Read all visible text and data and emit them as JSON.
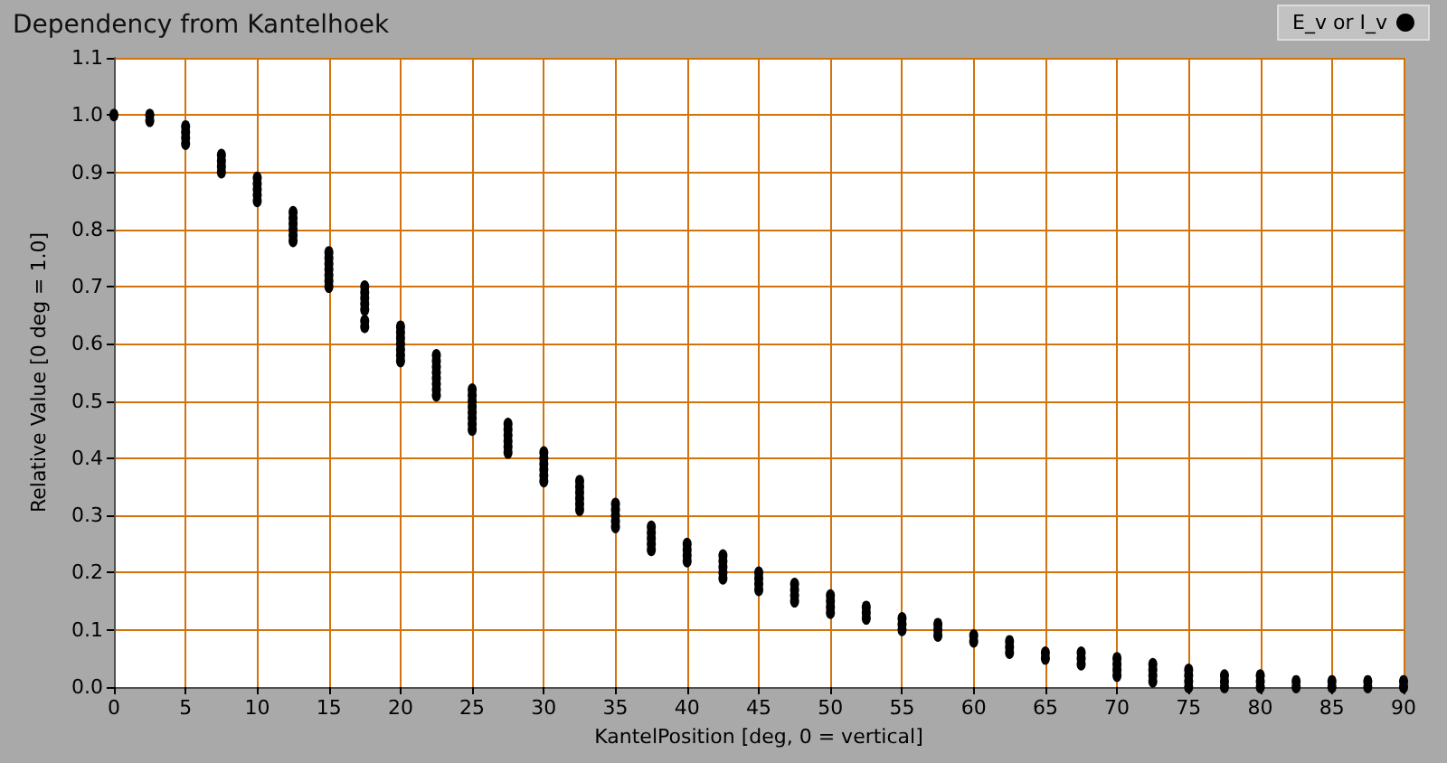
{
  "chart_data": {
    "type": "scatter",
    "title": "Dependency from Kantelhoek",
    "xlabel": "KantelPosition [deg, 0 = vertical]",
    "ylabel": "Relative Value [0 deg = 1.0]",
    "series": [
      {
        "name": "E_v or I_v",
        "color": "#000000",
        "x": [
          0,
          2.5,
          2.5,
          5,
          5,
          5,
          5,
          7.5,
          7.5,
          7.5,
          7.5,
          10,
          10,
          10,
          10,
          10,
          12.5,
          12.5,
          12.5,
          12.5,
          12.5,
          12.5,
          15,
          15,
          15,
          15,
          15,
          15,
          15,
          17.5,
          17.5,
          17.5,
          17.5,
          17.5,
          17.5,
          17.5,
          20,
          20,
          20,
          20,
          20,
          20,
          20,
          22.5,
          22.5,
          22.5,
          22.5,
          22.5,
          22.5,
          22.5,
          22.5,
          25,
          25,
          25,
          25,
          25,
          25,
          25,
          25,
          27.5,
          27.5,
          27.5,
          27.5,
          27.5,
          27.5,
          30,
          30,
          30,
          30,
          30,
          30,
          32.5,
          32.5,
          32.5,
          32.5,
          32.5,
          32.5,
          35,
          35,
          35,
          35,
          35,
          37.5,
          37.5,
          37.5,
          37.5,
          37.5,
          40,
          40,
          40,
          40,
          42.5,
          42.5,
          42.5,
          42.5,
          42.5,
          45,
          45,
          45,
          45,
          47.5,
          47.5,
          47.5,
          47.5,
          50,
          50,
          50,
          50,
          52.5,
          52.5,
          52.5,
          55,
          55,
          55,
          57.5,
          57.5,
          57.5,
          60,
          60,
          62.5,
          62.5,
          62.5,
          65,
          65,
          67.5,
          67.5,
          67.5,
          70,
          70,
          70,
          70,
          72.5,
          72.5,
          72.5,
          72.5,
          75,
          75,
          75,
          75,
          77.5,
          77.5,
          77.5,
          80,
          80,
          80,
          82.5,
          82.5,
          85,
          85,
          87.5,
          87.5,
          90,
          90
        ],
        "values": [
          1.0,
          1.0,
          0.99,
          0.98,
          0.97,
          0.96,
          0.95,
          0.93,
          0.92,
          0.91,
          0.9,
          0.89,
          0.88,
          0.87,
          0.86,
          0.85,
          0.83,
          0.82,
          0.81,
          0.8,
          0.79,
          0.78,
          0.76,
          0.75,
          0.74,
          0.73,
          0.72,
          0.71,
          0.7,
          0.7,
          0.69,
          0.68,
          0.67,
          0.66,
          0.64,
          0.63,
          0.63,
          0.62,
          0.61,
          0.6,
          0.59,
          0.58,
          0.57,
          0.58,
          0.57,
          0.56,
          0.55,
          0.54,
          0.53,
          0.52,
          0.51,
          0.52,
          0.51,
          0.5,
          0.49,
          0.48,
          0.47,
          0.46,
          0.45,
          0.46,
          0.45,
          0.44,
          0.43,
          0.42,
          0.41,
          0.41,
          0.4,
          0.39,
          0.38,
          0.37,
          0.36,
          0.36,
          0.35,
          0.34,
          0.33,
          0.32,
          0.31,
          0.32,
          0.31,
          0.3,
          0.29,
          0.28,
          0.28,
          0.27,
          0.26,
          0.25,
          0.24,
          0.25,
          0.24,
          0.23,
          0.22,
          0.23,
          0.22,
          0.21,
          0.2,
          0.19,
          0.2,
          0.19,
          0.18,
          0.17,
          0.18,
          0.17,
          0.16,
          0.15,
          0.16,
          0.15,
          0.14,
          0.13,
          0.14,
          0.13,
          0.12,
          0.12,
          0.11,
          0.1,
          0.11,
          0.1,
          0.09,
          0.09,
          0.08,
          0.08,
          0.07,
          0.06,
          0.06,
          0.05,
          0.06,
          0.05,
          0.04,
          0.05,
          0.04,
          0.03,
          0.02,
          0.04,
          0.03,
          0.02,
          0.01,
          0.03,
          0.02,
          0.01,
          0,
          0.02,
          0.01,
          0,
          0.02,
          0.01,
          0,
          0.01,
          0,
          0.01,
          0,
          0.01,
          0,
          0.01,
          0
        ]
      }
    ],
    "xlim": [
      0,
      90
    ],
    "xticks": [
      0,
      5,
      10,
      15,
      20,
      25,
      30,
      35,
      40,
      45,
      50,
      55,
      60,
      65,
      70,
      75,
      80,
      85,
      90
    ],
    "ylim": [
      0,
      1.1
    ],
    "yticks": [
      {
        "value": 0,
        "label": "0.0"
      },
      0.1,
      0.2,
      0.3,
      0.4,
      0.5,
      0.6,
      0.7,
      0.8,
      0.9,
      {
        "value": 1,
        "label": "1.0"
      },
      1.1
    ],
    "grid": true,
    "legend": "top right",
    "marker": "circle"
  }
}
